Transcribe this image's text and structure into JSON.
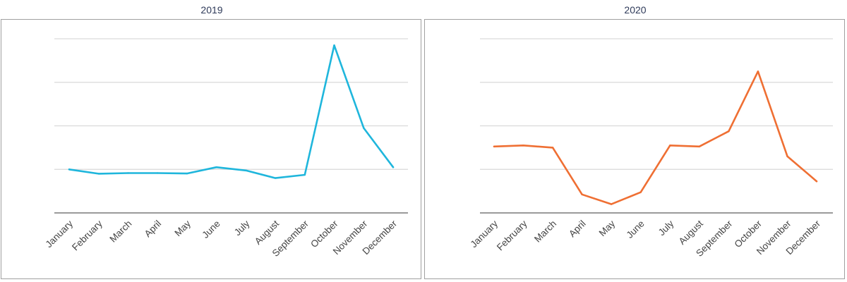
{
  "chart_data": [
    {
      "type": "line",
      "title": "2019",
      "xlabel": "",
      "ylabel": "",
      "categories": [
        "January",
        "February",
        "March",
        "April",
        "May",
        "June",
        "July",
        "August",
        "September",
        "October",
        "November",
        "December"
      ],
      "series": [
        {
          "values": [
            20,
            18,
            18.3,
            18.3,
            18.1,
            21,
            19.5,
            16,
            17.5,
            77,
            39,
            21
          ],
          "color": "#1fb6dc"
        }
      ],
      "ylim": [
        0,
        80
      ],
      "grid": true,
      "y_tick_labels_visible": false
    },
    {
      "type": "line",
      "title": "2020",
      "xlabel": "",
      "ylabel": "",
      "categories": [
        "January",
        "February",
        "March",
        "April",
        "May",
        "June",
        "July",
        "August",
        "September",
        "October",
        "November",
        "December"
      ],
      "series": [
        {
          "values": [
            30.5,
            31,
            30,
            8.5,
            4,
            9.5,
            31,
            30.5,
            37.5,
            65,
            26,
            14.5
          ],
          "color": "#ef6f33"
        }
      ],
      "ylim": [
        0,
        80
      ],
      "grid": true,
      "y_tick_labels_visible": false
    }
  ]
}
